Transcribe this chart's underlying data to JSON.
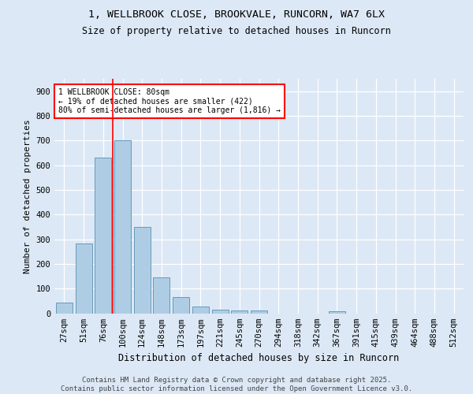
{
  "title_line1": "1, WELLBROOK CLOSE, BROOKVALE, RUNCORN, WA7 6LX",
  "title_line2": "Size of property relative to detached houses in Runcorn",
  "xlabel": "Distribution of detached houses by size in Runcorn",
  "ylabel": "Number of detached properties",
  "footer": "Contains HM Land Registry data © Crown copyright and database right 2025.\nContains public sector information licensed under the Open Government Licence v3.0.",
  "categories": [
    "27sqm",
    "51sqm",
    "76sqm",
    "100sqm",
    "124sqm",
    "148sqm",
    "173sqm",
    "197sqm",
    "221sqm",
    "245sqm",
    "270sqm",
    "294sqm",
    "318sqm",
    "342sqm",
    "367sqm",
    "391sqm",
    "415sqm",
    "439sqm",
    "464sqm",
    "488sqm",
    "512sqm"
  ],
  "values": [
    42,
    283,
    630,
    700,
    350,
    145,
    65,
    28,
    15,
    11,
    11,
    0,
    0,
    0,
    8,
    0,
    0,
    0,
    0,
    0,
    0
  ],
  "bar_color": "#aecde4",
  "bar_edge_color": "#6699bb",
  "vline_x": 2.5,
  "vline_color": "red",
  "annotation_text": "1 WELLBROOK CLOSE: 80sqm\n← 19% of detached houses are smaller (422)\n80% of semi-detached houses are larger (1,816) →",
  "annotation_box_color": "white",
  "annotation_box_edge": "red",
  "ylim": [
    0,
    950
  ],
  "yticks": [
    0,
    100,
    200,
    300,
    400,
    500,
    600,
    700,
    800,
    900
  ],
  "bg_color": "#dce8f5",
  "plot_bg_color": "#dce8f5",
  "grid_color": "#ffffff",
  "title_fontsize": 9.5,
  "subtitle_fontsize": 8.5,
  "axis_label_fontsize": 8,
  "tick_fontsize": 7.5,
  "annotation_fontsize": 7,
  "footer_fontsize": 6.5
}
